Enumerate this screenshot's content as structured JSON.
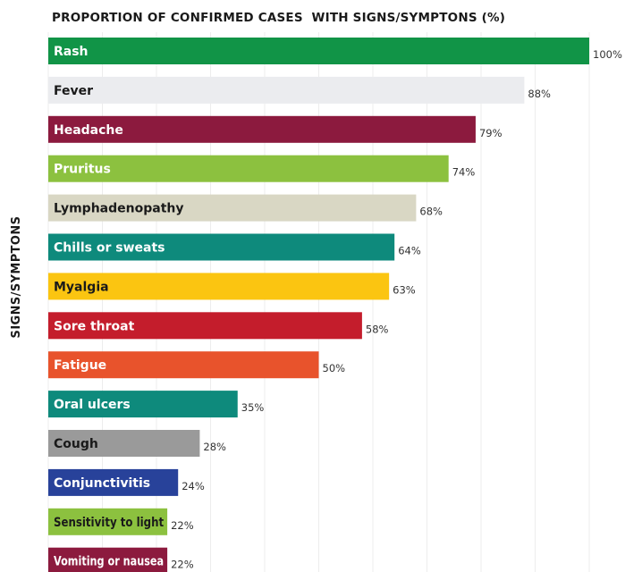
{
  "chart_data": {
    "type": "bar",
    "orientation": "horizontal",
    "title": "PROPORTION OF CONFIRMED CASES  WITH SIGNS/SYMPTONS (%)",
    "xlabel": "",
    "ylabel": "SIGNS/SYMPTONS",
    "xlim": [
      0,
      100
    ],
    "grid": true,
    "value_suffix": "%",
    "categories": [
      "Rash",
      "Fever",
      "Headache",
      "Pruritus",
      "Lymphadenopathy",
      "Chills or sweats",
      "Myalgia",
      "Sore throat",
      "Fatigue",
      "Oral ulcers",
      "Cough",
      "Conjunctivitis",
      "Sensitivity to light",
      "Vomiting or nausea"
    ],
    "values": [
      100,
      88,
      79,
      74,
      68,
      64,
      63,
      58,
      50,
      35,
      28,
      24,
      22,
      22
    ],
    "value_labels": [
      "100%",
      "88%",
      "79%",
      "74%",
      "68%",
      "64%",
      "63%",
      "58%",
      "50%",
      "35%",
      "28%",
      "24%",
      "22%",
      "22%"
    ],
    "bar_colors": [
      "#119447",
      "#ebecef",
      "#8c1a3e",
      "#8cc13f",
      "#d9d7c4",
      "#0e8a7c",
      "#fbc511",
      "#c41d2c",
      "#e8532c",
      "#0e8a7c",
      "#9a9a9a",
      "#28429a",
      "#8cc13f",
      "#8c1a3e"
    ],
    "label_colors": [
      "#ffffff",
      "#1a1a1a",
      "#ffffff",
      "#ffffff",
      "#1a1a1a",
      "#ffffff",
      "#1a1a1a",
      "#ffffff",
      "#ffffff",
      "#ffffff",
      "#1a1a1a",
      "#ffffff",
      "#1a1a1a",
      "#ffffff"
    ]
  }
}
